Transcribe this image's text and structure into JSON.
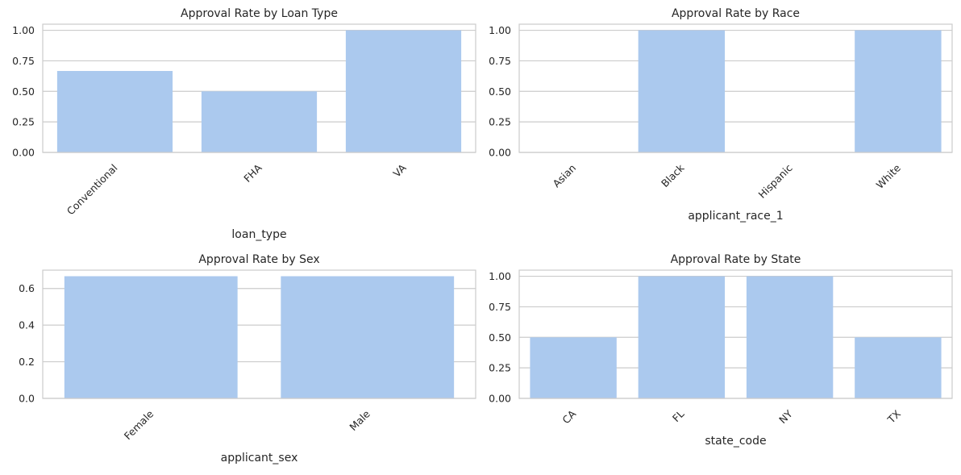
{
  "theme": {
    "bar_color": "#abc9ee",
    "grid_color": "#cccccc",
    "frame_color": "#cccccc",
    "text_color": "#262626"
  },
  "chart_data": [
    {
      "type": "bar",
      "title": "Approval Rate by Loan Type",
      "xlabel": "loan_type",
      "ylabel": "",
      "categories": [
        "Conventional",
        "FHA",
        "VA"
      ],
      "values": [
        0.667,
        0.5,
        1.0
      ],
      "ylim": [
        0,
        1.05
      ],
      "yticks": [
        "0.00",
        "0.25",
        "0.50",
        "0.75",
        "1.00"
      ],
      "grid": "horizontal"
    },
    {
      "type": "bar",
      "title": "Approval Rate by Race",
      "xlabel": "applicant_race_1",
      "ylabel": "",
      "categories": [
        "Asian",
        "Black",
        "Hispanic",
        "White"
      ],
      "values": [
        0.0,
        1.0,
        0.0,
        1.0
      ],
      "ylim": [
        0,
        1.05
      ],
      "yticks": [
        "0.00",
        "0.25",
        "0.50",
        "0.75",
        "1.00"
      ],
      "grid": "horizontal"
    },
    {
      "type": "bar",
      "title": "Approval Rate by Sex",
      "xlabel": "applicant_sex",
      "ylabel": "",
      "categories": [
        "Female",
        "Male"
      ],
      "values": [
        0.667,
        0.667
      ],
      "ylim": [
        0,
        0.7
      ],
      "yticks": [
        "0.0",
        "0.2",
        "0.4",
        "0.6"
      ],
      "grid": "horizontal"
    },
    {
      "type": "bar",
      "title": "Approval Rate by State",
      "xlabel": "state_code",
      "ylabel": "",
      "categories": [
        "CA",
        "FL",
        "NY",
        "TX"
      ],
      "values": [
        0.5,
        1.0,
        1.0,
        0.5
      ],
      "ylim": [
        0,
        1.05
      ],
      "yticks": [
        "0.00",
        "0.25",
        "0.50",
        "0.75",
        "1.00"
      ],
      "grid": "horizontal"
    }
  ]
}
